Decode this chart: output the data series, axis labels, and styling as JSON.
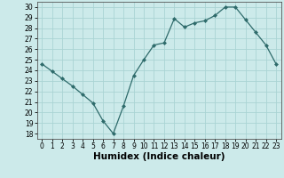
{
  "x": [
    0,
    1,
    2,
    3,
    4,
    5,
    6,
    7,
    8,
    9,
    10,
    11,
    12,
    13,
    14,
    15,
    16,
    17,
    18,
    19,
    20,
    21,
    22,
    23
  ],
  "y": [
    24.6,
    23.9,
    23.2,
    22.5,
    21.7,
    20.9,
    19.2,
    18.0,
    20.6,
    23.5,
    25.0,
    26.4,
    26.6,
    28.9,
    28.1,
    28.5,
    28.7,
    29.2,
    30.0,
    30.0,
    28.8,
    27.6,
    26.4,
    24.6
  ],
  "line_color": "#2e6b6b",
  "marker": "D",
  "marker_size": 2.0,
  "bg_color": "#cceaea",
  "grid_color": "#aad4d4",
  "xlabel": "Humidex (Indice chaleur)",
  "ylim": [
    17.5,
    30.5
  ],
  "xlim": [
    -0.5,
    23.5
  ],
  "yticks": [
    18,
    19,
    20,
    21,
    22,
    23,
    24,
    25,
    26,
    27,
    28,
    29,
    30
  ],
  "xticks": [
    0,
    1,
    2,
    3,
    4,
    5,
    6,
    7,
    8,
    9,
    10,
    11,
    12,
    13,
    14,
    15,
    16,
    17,
    18,
    19,
    20,
    21,
    22,
    23
  ],
  "tick_fontsize": 5.5,
  "xlabel_fontsize": 7.5,
  "xlabel_fontweight": "bold",
  "linewidth": 0.9
}
